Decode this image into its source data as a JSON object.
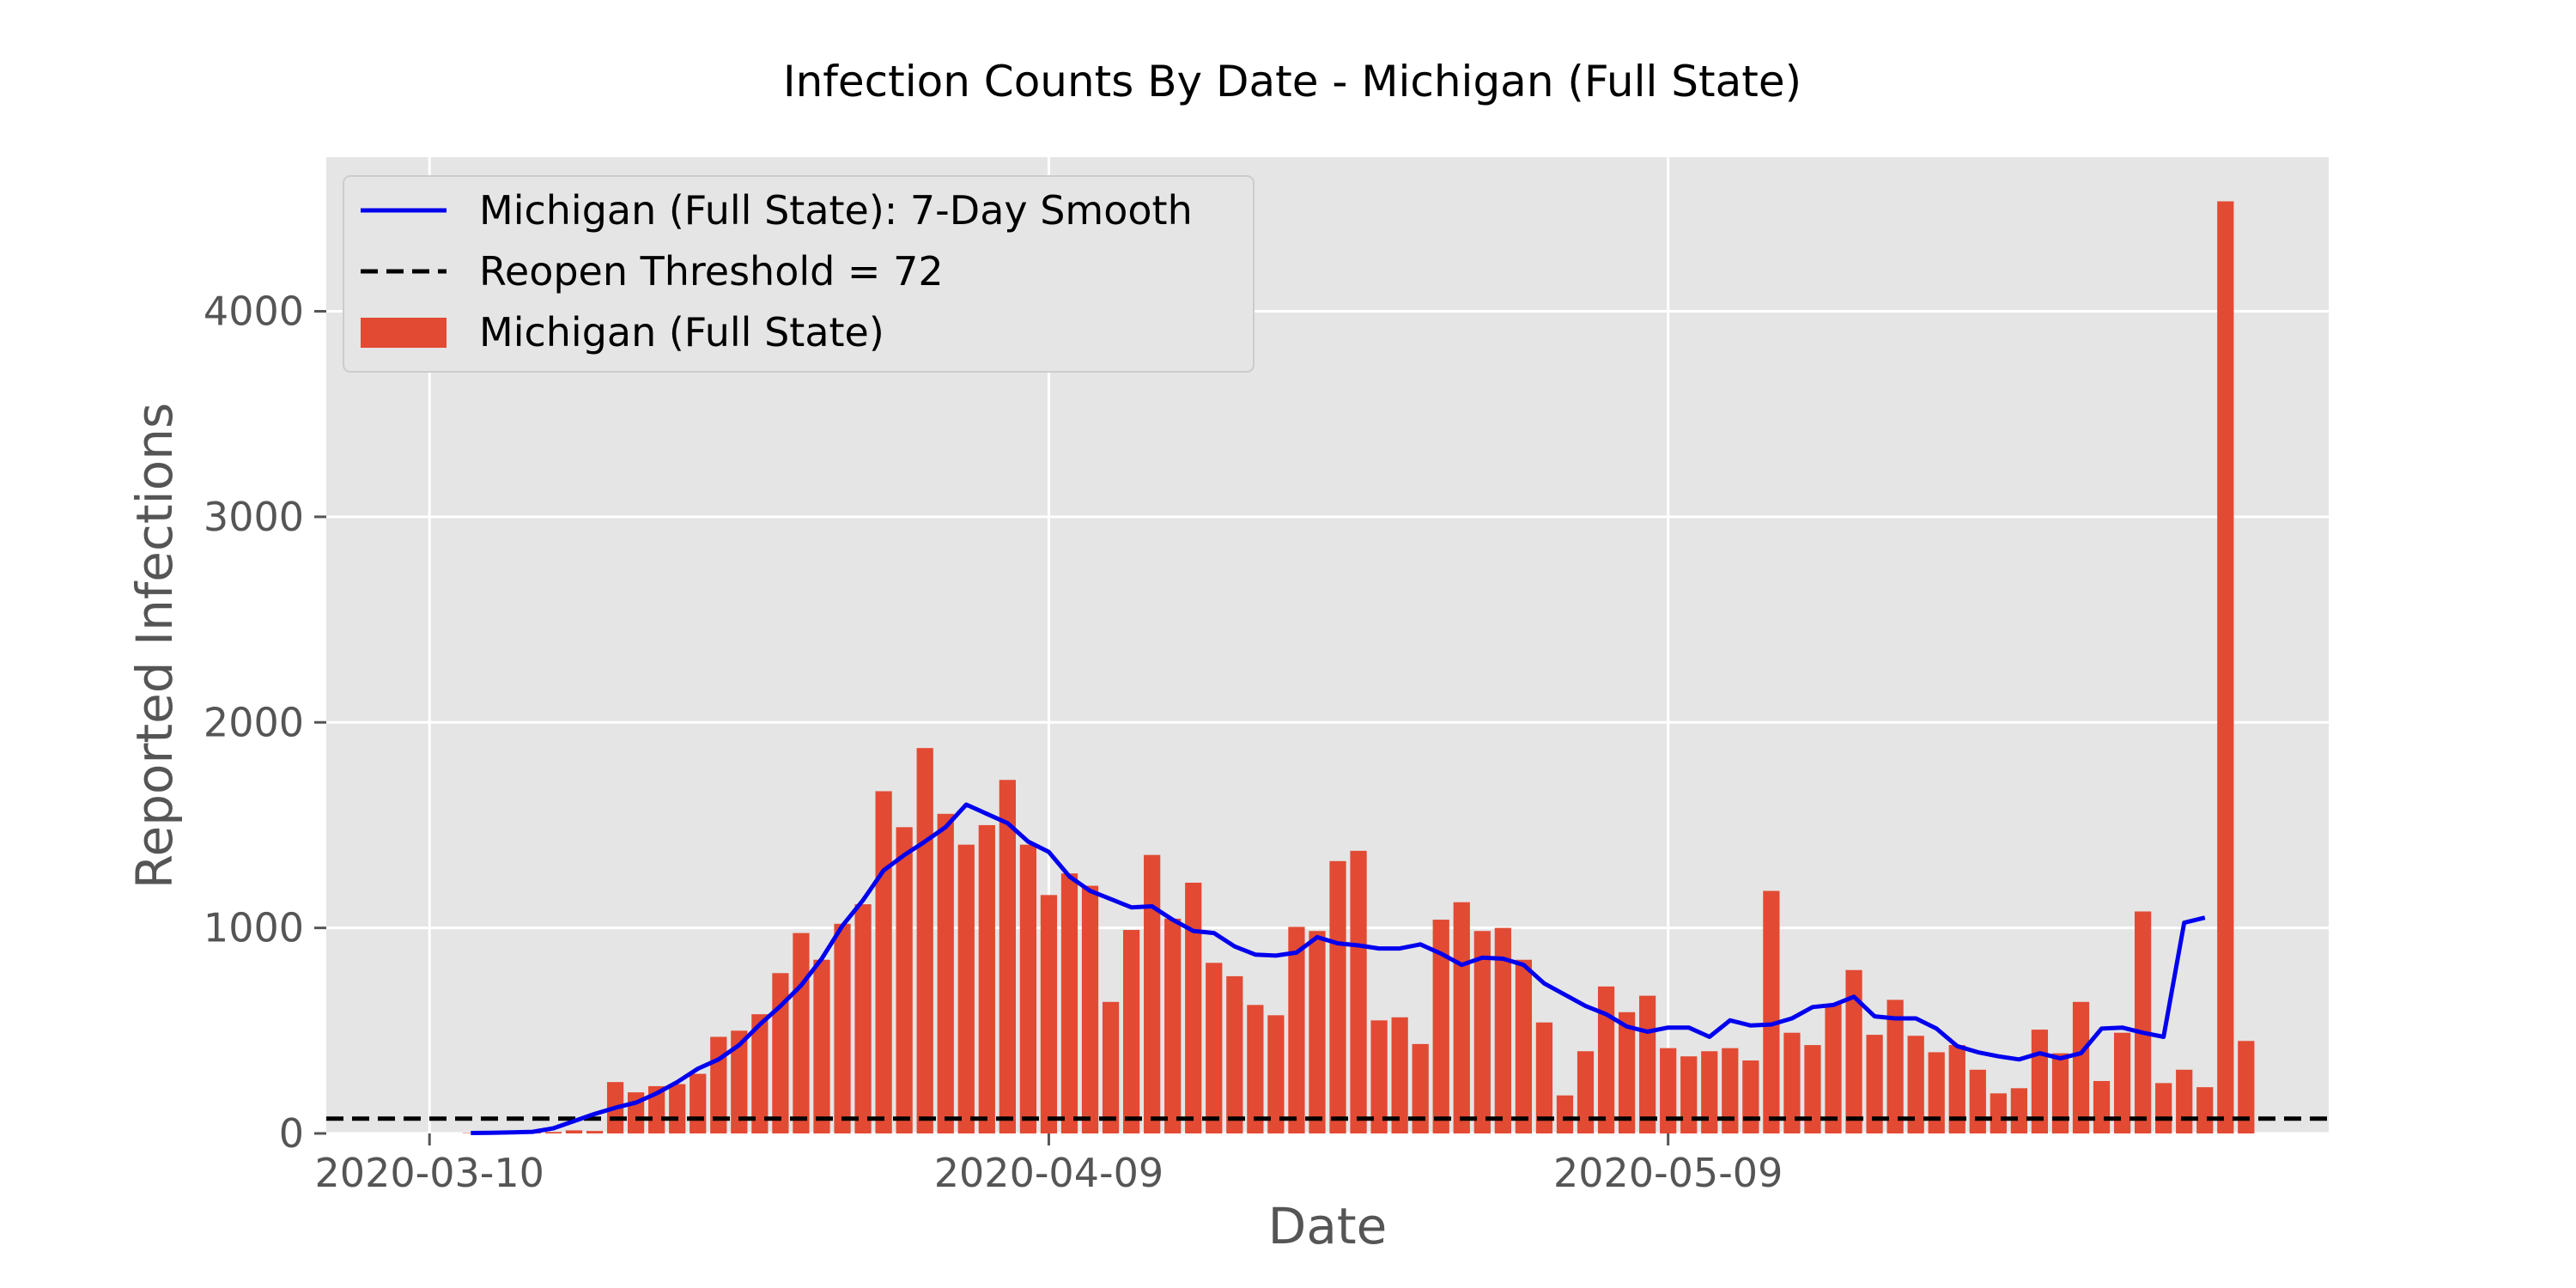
{
  "chart_data": {
    "type": "bar",
    "title": "Infection Counts By Date - Michigan (Full State)",
    "xlabel": "Date",
    "ylabel": "Reported Infections",
    "x_start_date": "2020-03-10",
    "x_tick_labels": [
      "2020-03-10",
      "2020-04-09",
      "2020-05-09"
    ],
    "x_ticks": [
      "2020-03-10",
      "2020-04-09",
      "2020-05-09"
    ],
    "y_ticks": [
      0,
      1000,
      2000,
      3000,
      4000
    ],
    "y_tick_labels": [
      "0",
      "1000",
      "2000",
      "3000",
      "4000"
    ],
    "xlim": [
      "2020-03-05",
      "2020-06-10"
    ],
    "ylim": [
      0,
      4750
    ],
    "grid": true,
    "legend_position": "top-left",
    "background": "#e5e5e5",
    "series": [
      {
        "name": "Michigan (Full State): 7-Day Smooth",
        "kind": "line",
        "color": "#0000ee",
        "start_date": "2020-03-12",
        "values": [
          2,
          3,
          5,
          8,
          25,
          60,
          95,
          125,
          150,
          195,
          250,
          315,
          360,
          430,
          530,
          620,
          720,
          850,
          1010,
          1135,
          1280,
          1355,
          1420,
          1490,
          1600,
          1555,
          1510,
          1420,
          1370,
          1250,
          1180,
          1140,
          1100,
          1105,
          1040,
          985,
          975,
          910,
          870,
          865,
          880,
          955,
          925,
          915,
          900,
          900,
          920,
          875,
          820,
          855,
          850,
          820,
          730,
          675,
          620,
          580,
          520,
          495,
          515,
          515,
          470,
          550,
          525,
          530,
          560,
          615,
          625,
          665,
          570,
          560,
          560,
          510,
          425,
          395,
          375,
          360,
          390,
          365,
          390,
          510,
          515,
          490,
          470,
          1025,
          1050
        ]
      },
      {
        "name": "Reopen Threshold = 72",
        "kind": "hline",
        "color": "#000000",
        "value": 72
      },
      {
        "name": "Michigan (Full State)",
        "kind": "bar",
        "color": "#e24a33",
        "start_date": "2020-03-12",
        "values": [
          2,
          5,
          3,
          4,
          7,
          15,
          12,
          250,
          200,
          230,
          240,
          290,
          470,
          500,
          580,
          780,
          975,
          845,
          1020,
          1115,
          1665,
          1490,
          1875,
          1555,
          1405,
          1500,
          1720,
          1405,
          1160,
          1265,
          1205,
          640,
          990,
          1355,
          1045,
          1220,
          830,
          765,
          625,
          575,
          1005,
          985,
          1325,
          1375,
          550,
          565,
          435,
          1040,
          1125,
          985,
          1000,
          845,
          540,
          185,
          400,
          715,
          590,
          670,
          415,
          375,
          400,
          415,
          355,
          1180,
          490,
          430,
          630,
          795,
          480,
          650,
          475,
          395,
          430,
          310,
          195,
          220,
          505,
          390,
          640,
          255,
          490,
          1080,
          245,
          310,
          225,
          4535,
          450
        ]
      }
    ]
  }
}
